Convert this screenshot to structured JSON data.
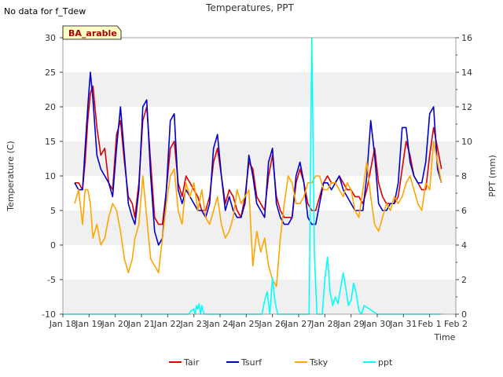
{
  "chart_data": {
    "type": "line",
    "title": "Temperatures, PPT",
    "note": "No data for f_Tdew",
    "site_label": "BA_arable",
    "xlabel": "Time",
    "ylabel": "Temperature (C)",
    "y2label": "PPT (mm)",
    "x_ticks": [
      "Jan 18",
      "Jan 19",
      "Jan 20",
      "Jan 21",
      "Jan 22",
      "Jan 23",
      "Jan 24",
      "Jan 25",
      "Jan 26",
      "Jan 27",
      "Jan 28",
      "Jan 29",
      "Jan 30",
      "Jan 31",
      "Feb 1",
      "Feb 2"
    ],
    "xlim": [
      0,
      15
    ],
    "ylim": [
      -10,
      30
    ],
    "y_ticks": [
      -10,
      -5,
      0,
      5,
      10,
      15,
      20,
      25,
      30
    ],
    "y2lim": [
      0,
      16
    ],
    "y2_ticks": [
      0,
      2,
      4,
      6,
      8,
      10,
      12,
      14,
      16
    ],
    "grid": "horizontal bands",
    "legend_position": "bottom",
    "series": [
      {
        "name": "Tair",
        "axis": "left",
        "color": "#dd0000",
        "x": [
          0.45,
          0.6,
          0.75,
          0.85,
          0.95,
          1.05,
          1.15,
          1.3,
          1.45,
          1.6,
          1.75,
          1.9,
          2.05,
          2.2,
          2.35,
          2.5,
          2.65,
          2.75,
          2.9,
          3.05,
          3.2,
          3.35,
          3.5,
          3.65,
          3.8,
          3.95,
          4.1,
          4.25,
          4.4,
          4.55,
          4.7,
          4.85,
          5.0,
          5.15,
          5.3,
          5.45,
          5.6,
          5.75,
          5.9,
          6.05,
          6.2,
          6.35,
          6.5,
          6.65,
          6.8,
          6.95,
          7.1,
          7.25,
          7.4,
          7.55,
          7.7,
          7.85,
          8.0,
          8.15,
          8.3,
          8.45,
          8.6,
          8.75,
          8.9,
          9.05,
          9.2,
          9.35,
          9.5,
          9.65,
          9.8,
          9.95,
          10.1,
          10.25,
          10.4,
          10.55,
          10.7,
          10.85,
          11.0,
          11.15,
          11.3,
          11.45,
          11.6,
          11.75,
          11.9,
          12.05,
          12.2,
          12.35,
          12.5,
          12.65,
          12.8,
          12.95,
          13.1,
          13.25,
          13.4,
          13.55,
          13.7,
          13.85,
          14.0,
          14.15,
          14.3,
          14.45
        ],
        "y": [
          9,
          9,
          8,
          12,
          18,
          22,
          23,
          17,
          13,
          14,
          9,
          8,
          16,
          18,
          12,
          7,
          6,
          4,
          9,
          18,
          20,
          12,
          4,
          3,
          3,
          8,
          14,
          15,
          9,
          7,
          10,
          9,
          8,
          7,
          5,
          5,
          7,
          12,
          14,
          10,
          6,
          8,
          7,
          5,
          4,
          7,
          12,
          11,
          7,
          6,
          5,
          10,
          13,
          7,
          5,
          4,
          4,
          4,
          9,
          11,
          9,
          6,
          5,
          5,
          7,
          9,
          10,
          9,
          9,
          10,
          9,
          8,
          8,
          7,
          7,
          6,
          8,
          11,
          14,
          9,
          7,
          6,
          6,
          6,
          7,
          11,
          15,
          13,
          10,
          9,
          8,
          8,
          13,
          17,
          14,
          11
        ]
      },
      {
        "name": "Tsurf",
        "axis": "left",
        "color": "#0000cc",
        "x": [
          0.45,
          0.6,
          0.75,
          0.85,
          0.95,
          1.05,
          1.15,
          1.3,
          1.45,
          1.6,
          1.75,
          1.9,
          2.05,
          2.2,
          2.35,
          2.5,
          2.65,
          2.75,
          2.9,
          3.05,
          3.2,
          3.35,
          3.5,
          3.65,
          3.8,
          3.95,
          4.1,
          4.25,
          4.4,
          4.55,
          4.7,
          4.85,
          5.0,
          5.15,
          5.3,
          5.45,
          5.6,
          5.75,
          5.9,
          6.05,
          6.2,
          6.35,
          6.5,
          6.65,
          6.8,
          6.95,
          7.1,
          7.25,
          7.4,
          7.55,
          7.7,
          7.85,
          8.0,
          8.15,
          8.3,
          8.45,
          8.6,
          8.75,
          8.9,
          9.05,
          9.2,
          9.35,
          9.5,
          9.65,
          9.8,
          9.95,
          10.1,
          10.25,
          10.4,
          10.55,
          10.7,
          10.85,
          11.0,
          11.15,
          11.3,
          11.45,
          11.6,
          11.75,
          11.9,
          12.05,
          12.2,
          12.35,
          12.5,
          12.65,
          12.8,
          12.95,
          13.1,
          13.25,
          13.4,
          13.55,
          13.7,
          13.85,
          14.0,
          14.15,
          14.3,
          14.45
        ],
        "y": [
          9,
          8,
          8,
          14,
          20,
          25,
          21,
          13,
          11,
          10,
          9,
          7,
          14,
          20,
          13,
          6,
          4,
          3,
          8,
          20,
          21,
          10,
          2,
          0,
          1,
          8,
          18,
          19,
          8,
          6,
          8,
          7,
          6,
          5,
          5,
          4,
          6,
          14,
          16,
          10,
          5,
          7,
          5,
          4,
          4,
          6,
          13,
          10,
          6,
          5,
          4,
          12,
          14,
          6,
          4,
          3,
          3,
          4,
          10,
          12,
          9,
          4,
          3,
          3,
          6,
          9,
          9,
          8,
          9,
          10,
          8,
          7,
          6,
          5,
          5,
          5,
          10,
          18,
          13,
          6,
          5,
          5,
          6,
          6,
          9,
          17,
          17,
          12,
          10,
          9,
          9,
          12,
          19,
          20,
          11,
          9
        ]
      },
      {
        "name": "Tsky",
        "axis": "left",
        "color": "#ffa500",
        "x": [
          0.45,
          0.6,
          0.75,
          0.85,
          0.95,
          1.05,
          1.15,
          1.3,
          1.45,
          1.6,
          1.75,
          1.9,
          2.05,
          2.2,
          2.35,
          2.5,
          2.65,
          2.75,
          2.9,
          3.05,
          3.2,
          3.35,
          3.5,
          3.65,
          3.8,
          3.95,
          4.1,
          4.25,
          4.4,
          4.55,
          4.7,
          4.85,
          5.0,
          5.15,
          5.3,
          5.45,
          5.6,
          5.75,
          5.9,
          6.05,
          6.2,
          6.35,
          6.5,
          6.65,
          6.8,
          6.95,
          7.1,
          7.25,
          7.4,
          7.55,
          7.7,
          7.85,
          8.0,
          8.15,
          8.3,
          8.45,
          8.6,
          8.75,
          8.9,
          9.05,
          9.2,
          9.35,
          9.5,
          9.65,
          9.8,
          9.95,
          10.1,
          10.25,
          10.4,
          10.55,
          10.7,
          10.85,
          11.0,
          11.15,
          11.3,
          11.45,
          11.6,
          11.75,
          11.9,
          12.05,
          12.2,
          12.35,
          12.5,
          12.65,
          12.8,
          12.95,
          13.1,
          13.25,
          13.4,
          13.55,
          13.7,
          13.85,
          14.0,
          14.15,
          14.3,
          14.45
        ],
        "y": [
          6,
          8,
          3,
          8,
          8,
          6,
          1,
          3,
          0,
          1,
          4,
          6,
          5,
          2,
          -2,
          -4,
          -2,
          1,
          3,
          10,
          4,
          -2,
          -3,
          -4,
          1,
          6,
          10,
          11,
          5,
          3,
          9,
          7,
          9,
          5,
          8,
          4,
          3,
          5,
          7,
          3,
          1,
          2,
          4,
          8,
          6,
          7,
          8,
          -3,
          2,
          -1,
          1,
          -3,
          -5,
          -6,
          1,
          6,
          10,
          9,
          6,
          6,
          7,
          9,
          9,
          10,
          10,
          8,
          8,
          9,
          9,
          8,
          7,
          9,
          8,
          5,
          4,
          8,
          12,
          7,
          3,
          2,
          4,
          6,
          5,
          7,
          6,
          7,
          9,
          10,
          8,
          6,
          5,
          9,
          8,
          15,
          12,
          9
        ]
      },
      {
        "name": "ppt",
        "axis": "right",
        "color": "#00ffff",
        "x": [
          0,
          1,
          2,
          3,
          4.8,
          4.9,
          5.0,
          5.05,
          5.1,
          5.15,
          5.2,
          5.25,
          5.3,
          5.35,
          5.4,
          6,
          7,
          7.6,
          7.7,
          7.8,
          7.9,
          8.0,
          8.1,
          8.2,
          8.3,
          8.4,
          8.5,
          8.6,
          8.8,
          8.9,
          9.0,
          9.1,
          9.2,
          9.3,
          9.4,
          9.5,
          9.6,
          9.7,
          9.8,
          9.9,
          10.0,
          10.1,
          10.2,
          10.3,
          10.4,
          10.5,
          10.6,
          10.7,
          10.8,
          10.9,
          11.0,
          11.1,
          11.2,
          11.3,
          11.4,
          11.5,
          12,
          13,
          14,
          14.45
        ],
        "y": [
          0,
          0,
          0,
          0,
          0,
          0.2,
          0.3,
          0,
          0.5,
          0.3,
          0.6,
          0,
          0.5,
          0.2,
          0,
          0,
          0,
          0,
          0.8,
          1.3,
          0,
          2.1,
          0.7,
          0,
          0,
          0,
          0,
          0,
          0,
          0,
          0,
          0,
          0,
          0,
          0,
          16,
          3.5,
          0,
          0,
          0,
          2,
          3.3,
          1.3,
          0.5,
          1,
          0.6,
          1.5,
          2.4,
          1.5,
          0.5,
          0.8,
          1.8,
          1.2,
          0.2,
          0,
          0.5,
          0,
          0,
          0,
          0
        ]
      }
    ]
  }
}
